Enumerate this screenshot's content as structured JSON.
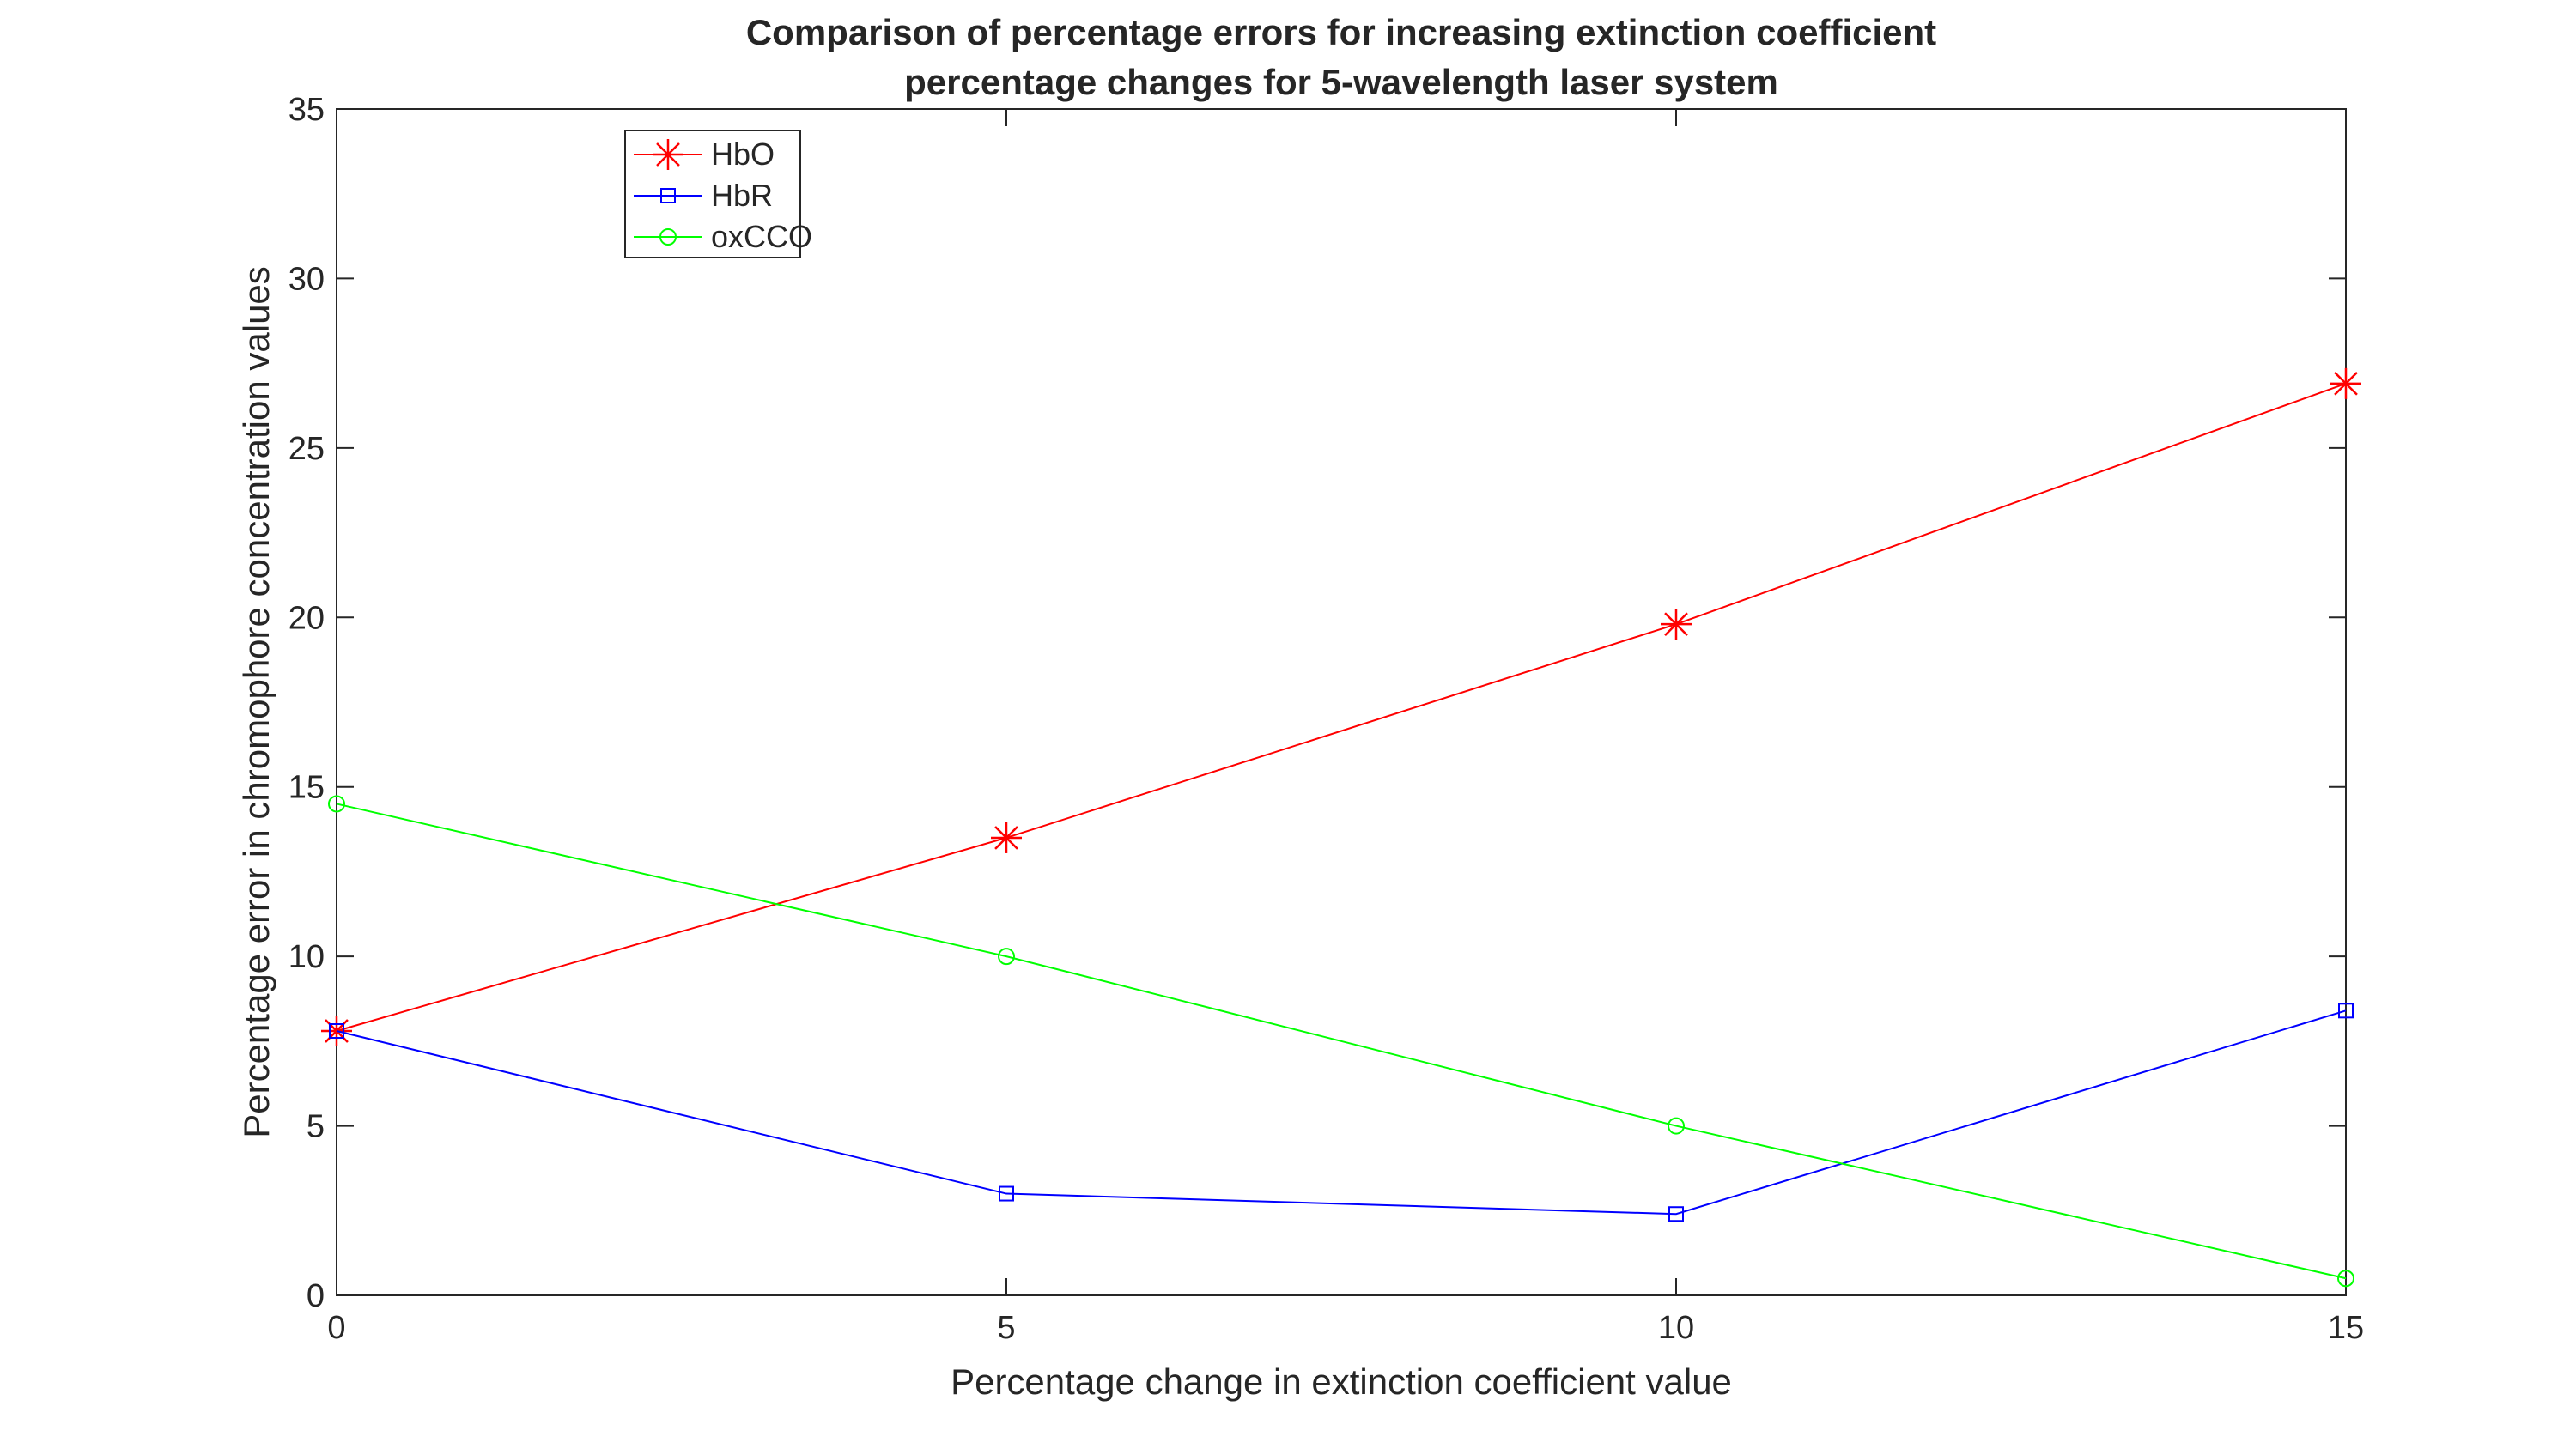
{
  "chart_data": {
    "type": "line",
    "title": [
      "Comparison of percentage errors for increasing extinction coefficient",
      "percentage changes for 5-wavelength laser system"
    ],
    "xlabel": "Percentage change in extinction coefficient value",
    "ylabel": "Percentage error in chromophore concentration values",
    "xlim": [
      0,
      15
    ],
    "ylim": [
      0,
      35
    ],
    "x_ticks": [
      "0",
      "5",
      "10",
      "15"
    ],
    "y_ticks": [
      "0",
      "5",
      "10",
      "15",
      "20",
      "25",
      "30",
      "35"
    ],
    "x": [
      0,
      5,
      10,
      15
    ],
    "grid": false,
    "legend_position": "top-left",
    "series": [
      {
        "name": "HbO",
        "marker": "asterisk",
        "color": "#ff0000",
        "values": [
          7.8,
          13.5,
          19.8,
          26.9
        ]
      },
      {
        "name": "HbR",
        "marker": "square",
        "color": "#0000ff",
        "values": [
          7.8,
          3.0,
          2.4,
          8.4
        ]
      },
      {
        "name": "oxCCO",
        "marker": "circle",
        "color": "#00ff00",
        "values": [
          14.5,
          10.0,
          5.0,
          0.5
        ]
      }
    ]
  }
}
